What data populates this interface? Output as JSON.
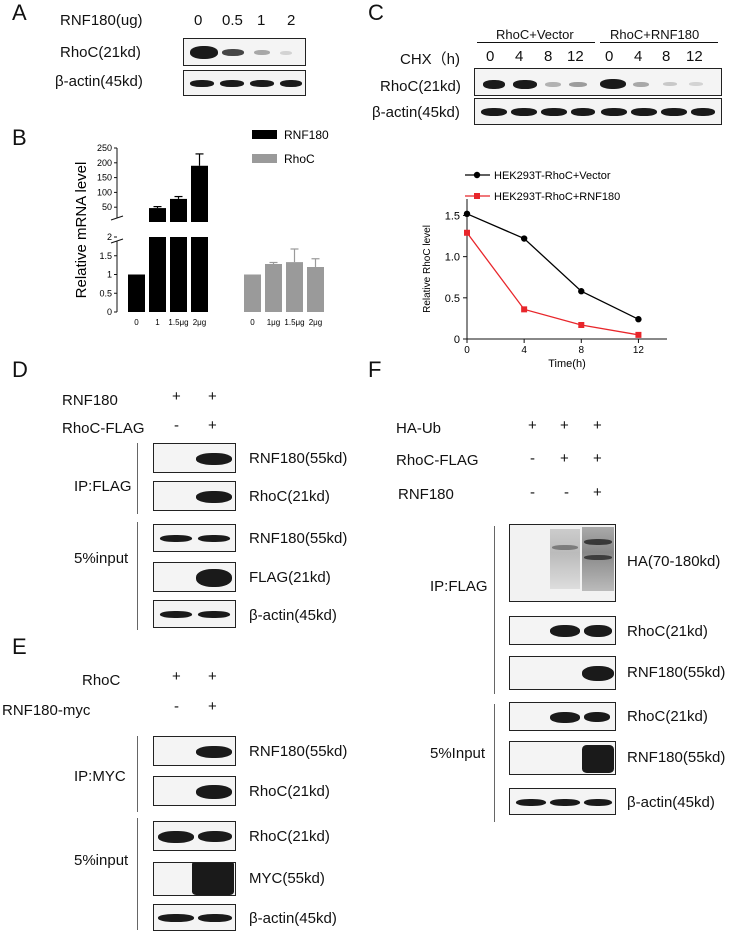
{
  "panels": {
    "A": "A",
    "B": "B",
    "C": "C",
    "D": "D",
    "E": "E",
    "F": "F"
  },
  "panelA": {
    "header": "RNF180(ug)",
    "doses": [
      "0",
      "0.5",
      "1",
      "2"
    ],
    "rows": [
      "RhoC(21kd)",
      "β-actin(45kd)"
    ]
  },
  "panelC": {
    "groups": [
      "RhoC+Vector",
      "RhoC+RNF180"
    ],
    "chx_label": "CHX（h)",
    "times": [
      "0",
      "4",
      "8",
      "12",
      "0",
      "4",
      "8",
      "12"
    ],
    "rows": [
      "RhoC(21kd)",
      "β-actin(45kd)"
    ]
  },
  "panelD": {
    "conditions": [
      {
        "label": "RNF180",
        "marks": [
          "+",
          "+"
        ]
      },
      {
        "label": "RhoC-FLAG",
        "marks": [
          "-",
          "+"
        ]
      }
    ],
    "groups": [
      "IP:FLAG",
      "5%input"
    ],
    "rows": [
      "RNF180(55kd)",
      "RhoC(21kd)",
      "RNF180(55kd)",
      "FLAG(21kd)",
      "β-actin(45kd)"
    ]
  },
  "panelE": {
    "conditions": [
      {
        "label": "RhoC",
        "marks": [
          "+",
          "+"
        ]
      },
      {
        "label": "RNF180-myc",
        "marks": [
          "-",
          "+"
        ]
      }
    ],
    "groups": [
      "IP:MYC",
      "5%input"
    ],
    "rows": [
      "RNF180(55kd)",
      "RhoC(21kd)",
      "RhoC(21kd)",
      "MYC(55kd)",
      "β-actin(45kd)"
    ]
  },
  "panelF": {
    "conditions": [
      {
        "label": "HA-Ub",
        "marks": [
          "+",
          "+",
          "+"
        ]
      },
      {
        "label": "RhoC-FLAG",
        "marks": [
          "-",
          "+",
          "+"
        ]
      },
      {
        "label": "RNF180",
        "marks": [
          "-",
          "-",
          "+"
        ]
      }
    ],
    "groups": [
      "IP:FLAG",
      "5%Input"
    ],
    "rows": [
      "HA(70-180kd)",
      "RhoC(21kd)",
      "RNF180(55kd)",
      "RhoC(21kd)",
      "RNF180(55kd)",
      "β-actin(45kd)"
    ]
  },
  "chart_data": [
    {
      "type": "bar",
      "panel": "B",
      "ylabel": "Relative mRNA level",
      "axis_break": true,
      "yticks_upper": [
        "50",
        "100",
        "150",
        "200",
        "250"
      ],
      "yticks_lower": [
        "0",
        "0.5",
        "1",
        "1.5",
        "2"
      ],
      "series": [
        {
          "name": "RNF180",
          "color": "#000000",
          "categories": [
            "0",
            "1",
            "1.5μg",
            "2μg"
          ],
          "values": [
            1,
            47,
            78,
            190
          ],
          "errors": [
            0,
            5,
            8,
            40
          ]
        },
        {
          "name": "RhoC",
          "color": "#9a9a9a",
          "categories": [
            "0",
            "1μg",
            "1.5μg",
            "2μg"
          ],
          "values": [
            1,
            1.28,
            1.33,
            1.2
          ],
          "errors": [
            0,
            0.04,
            0.35,
            0.22
          ]
        }
      ]
    },
    {
      "type": "line",
      "panel": "C",
      "xlabel": "Time(h)",
      "ylabel": "Relative RhoC level",
      "x": [
        0,
        4,
        8,
        12
      ],
      "xlim": [
        0,
        14
      ],
      "ylim": [
        0,
        1.7
      ],
      "yticks": [
        "0",
        "0.5",
        "1.0",
        "1.5"
      ],
      "series": [
        {
          "name": "HEK293T-RhoC+Vector",
          "color": "#000000",
          "marker": "circle",
          "values": [
            1.52,
            1.22,
            0.58,
            0.24
          ]
        },
        {
          "name": "HEK293T-RhoC+RNF180",
          "color": "#e8262b",
          "marker": "square",
          "values": [
            1.29,
            0.36,
            0.17,
            0.05
          ]
        }
      ]
    }
  ]
}
